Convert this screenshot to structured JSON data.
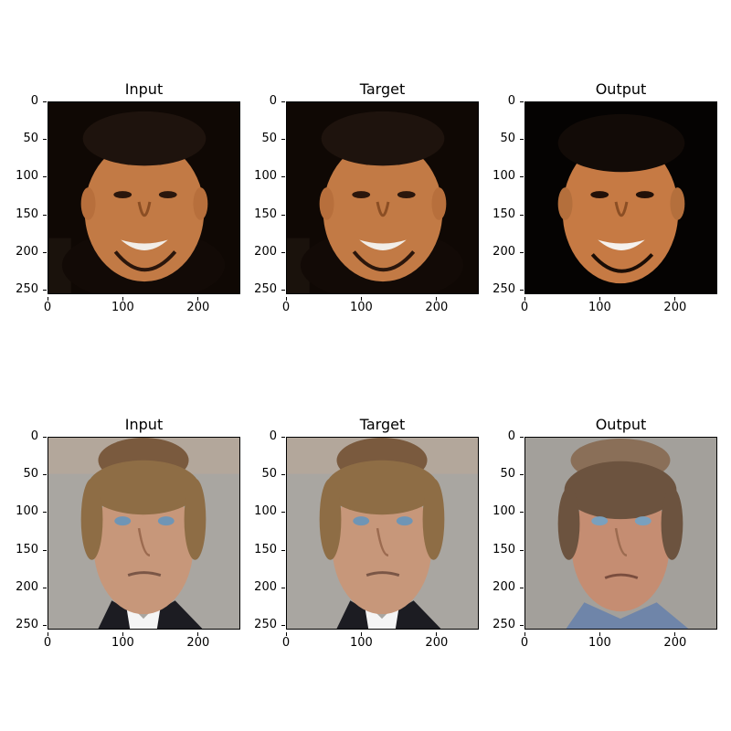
{
  "figure": {
    "rows": [
      {
        "panels": [
          {
            "title": "Input",
            "subject": "smiling-man-dark-background"
          },
          {
            "title": "Target",
            "subject": "smiling-man-dark-background"
          },
          {
            "title": "Output",
            "subject": "smiling-man-dark-background"
          }
        ]
      },
      {
        "panels": [
          {
            "title": "Input",
            "subject": "blond-man-suit-gray-background"
          },
          {
            "title": "Target",
            "subject": "blond-man-suit-gray-background"
          },
          {
            "title": "Output",
            "subject": "blond-man-suit-gray-background"
          }
        ]
      }
    ],
    "x_ticks": [
      "0",
      "100",
      "200"
    ],
    "y_ticks": [
      "0",
      "50",
      "100",
      "150",
      "200",
      "250"
    ],
    "axis_range": [
      0,
      256
    ]
  }
}
